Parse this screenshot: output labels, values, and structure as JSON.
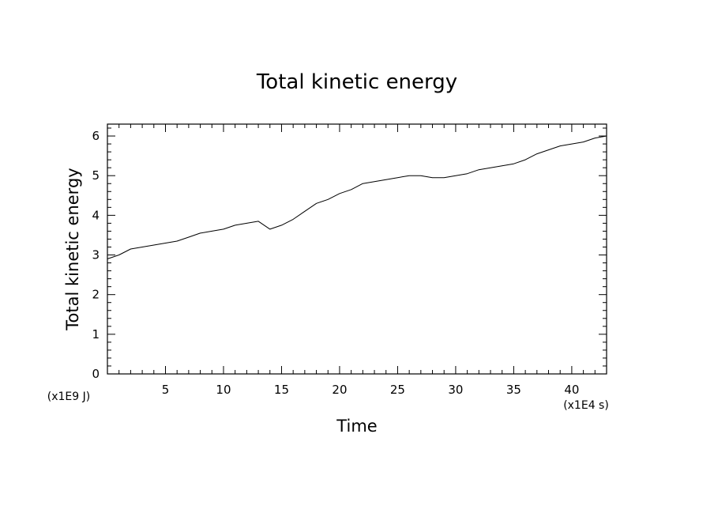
{
  "chart_data": {
    "type": "line",
    "title": "Total kinetic energy",
    "xlabel": "Time",
    "ylabel": "Total kinetic energy",
    "x_unit": "(x1E4 s)",
    "y_unit": "(x1E9 J)",
    "xlim": [
      0,
      43
    ],
    "ylim": [
      0,
      6.3
    ],
    "x_ticks": [
      5,
      10,
      15,
      20,
      25,
      30,
      35,
      40
    ],
    "y_ticks": [
      0,
      1,
      2,
      3,
      4,
      5,
      6
    ],
    "grid": false,
    "series": [
      {
        "x": [
          0,
          1,
          2,
          3,
          4,
          5,
          6,
          7,
          8,
          9,
          10,
          11,
          12,
          13,
          14,
          15,
          16,
          17,
          18,
          19,
          20,
          21,
          22,
          23,
          24,
          25,
          26,
          27,
          28,
          29,
          30,
          31,
          32,
          33,
          34,
          35,
          36,
          37,
          38,
          39,
          40,
          41,
          42,
          43
        ],
        "values": [
          2.9,
          3.0,
          3.15,
          3.2,
          3.25,
          3.3,
          3.35,
          3.45,
          3.55,
          3.6,
          3.65,
          3.75,
          3.8,
          3.85,
          3.65,
          3.75,
          3.9,
          4.1,
          4.3,
          4.4,
          4.55,
          4.65,
          4.8,
          4.85,
          4.9,
          4.95,
          5.0,
          5.0,
          4.95,
          4.95,
          5.0,
          5.05,
          5.15,
          5.2,
          5.25,
          5.3,
          5.4,
          5.55,
          5.65,
          5.75,
          5.8,
          5.85,
          5.95,
          6.0
        ]
      }
    ]
  }
}
